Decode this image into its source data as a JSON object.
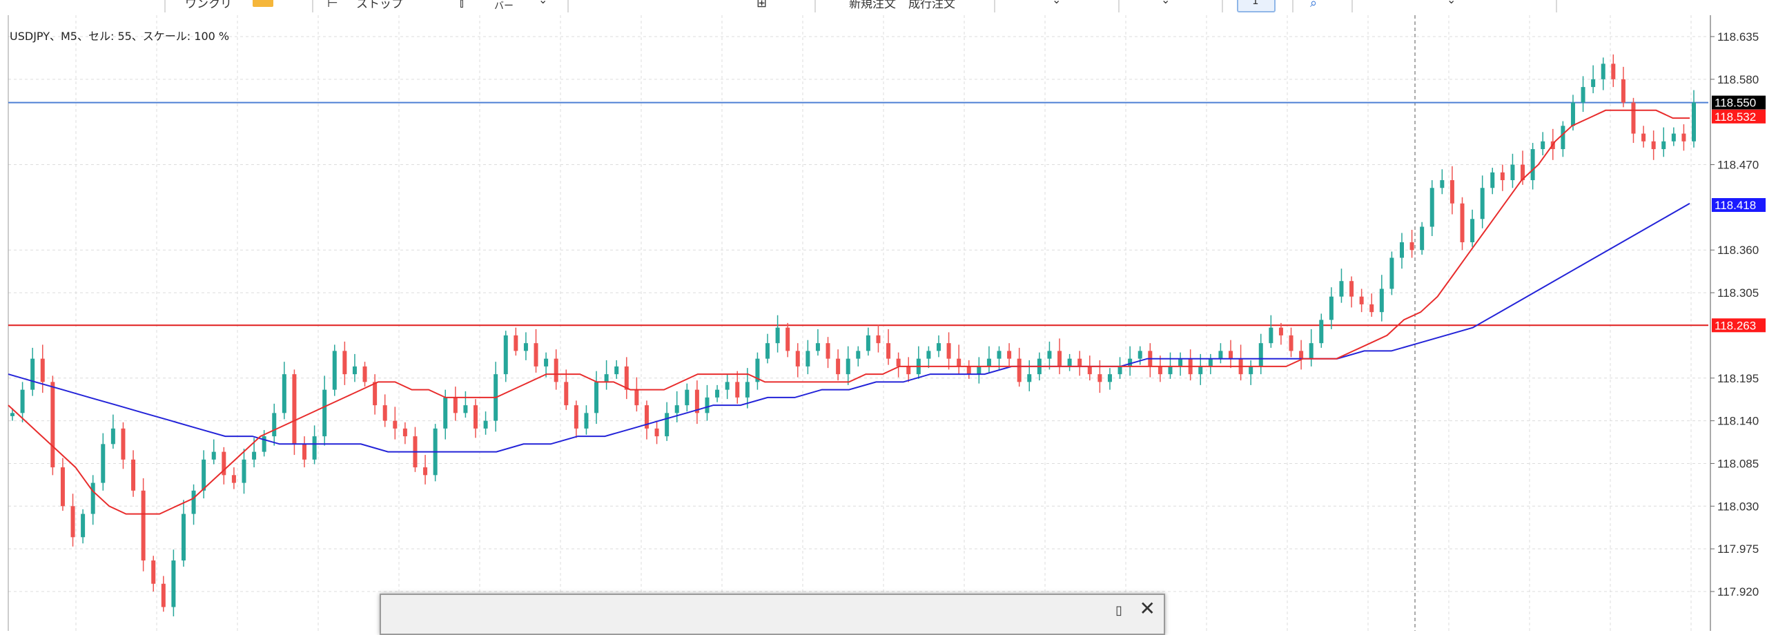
{
  "toolbar": {
    "items": [
      {
        "label": "ワンクリ",
        "icon": "one-click-trading-icon"
      },
      {
        "label": "ストップ",
        "icon": "stop-icon"
      },
      {
        "label": "バー",
        "icon": "bar-chart-icon"
      },
      {
        "label": "新規注文",
        "icon": "new-order-icon"
      },
      {
        "label": "成行注文",
        "icon": "market-order-icon"
      },
      {
        "label": "1",
        "icon": "zoom-icon"
      }
    ]
  },
  "chart": {
    "header_text": "USDJPY、M5、セル: 55、スケール: 100 %",
    "colors": {
      "bull": "#26a69a",
      "bear": "#ef5350",
      "ma_fast": "#e82c2c",
      "ma_slow": "#2323d8",
      "hline_blue": "#4d7fd4",
      "hline_red": "#e01b1b"
    }
  },
  "chart_data": {
    "type": "candlestick",
    "symbol": "USDJPY",
    "timeframe": "M5",
    "y_ticks": [
      "118.635",
      "118.580",
      "118.470",
      "118.360",
      "118.305",
      "118.195",
      "118.140",
      "118.085",
      "118.030",
      "117.975",
      "117.920"
    ],
    "price_labels": [
      {
        "value": "118.550",
        "bg": "#000000",
        "fg": "#ffffff"
      },
      {
        "value": "118.532",
        "bg": "#ff1a1a",
        "fg": "#ffffff"
      },
      {
        "value": "118.418",
        "bg": "#1a1aff",
        "fg": "#ffffff"
      },
      {
        "value": "118.263",
        "bg": "#ff1a1a",
        "fg": "#ffffff"
      }
    ],
    "horizontal_lines": [
      {
        "value": 118.55,
        "color": "#4d7fd4"
      },
      {
        "value": 118.263,
        "color": "#e01b1b"
      }
    ],
    "close_path": [
      118.15,
      118.18,
      118.22,
      118.19,
      118.08,
      118.03,
      117.99,
      118.02,
      118.06,
      118.11,
      118.13,
      118.09,
      118.05,
      117.96,
      117.93,
      117.9,
      117.96,
      118.02,
      118.05,
      118.09,
      118.1,
      118.07,
      118.06,
      118.09,
      118.1,
      118.12,
      118.15,
      118.2,
      118.11,
      118.09,
      118.12,
      118.18,
      118.23,
      118.2,
      118.21,
      118.19,
      118.16,
      118.14,
      118.13,
      118.12,
      118.08,
      118.07,
      118.13,
      118.17,
      118.15,
      118.16,
      118.13,
      118.14,
      118.2,
      118.25,
      118.23,
      118.24,
      118.21,
      118.22,
      118.19,
      118.16,
      118.13,
      118.15,
      118.19,
      118.2,
      118.21,
      118.18,
      118.16,
      118.13,
      118.12,
      118.15,
      118.16,
      118.18,
      118.15,
      118.17,
      118.18,
      118.19,
      118.17,
      118.19,
      118.22,
      118.24,
      118.26,
      118.23,
      118.21,
      118.23,
      118.24,
      118.22,
      118.2,
      118.22,
      118.23,
      118.25,
      118.24,
      118.22,
      118.21,
      118.2,
      118.22,
      118.23,
      118.24,
      118.22,
      118.21,
      118.2,
      118.21,
      118.22,
      118.23,
      118.22,
      118.19,
      118.2,
      118.22,
      118.23,
      118.21,
      118.22,
      118.21,
      118.2,
      118.19,
      118.2,
      118.21,
      118.22,
      118.23,
      118.21,
      118.2,
      118.21,
      118.22,
      118.2,
      118.21,
      118.22,
      118.23,
      118.22,
      118.2,
      118.21,
      118.24,
      118.26,
      118.25,
      118.23,
      118.22,
      118.24,
      118.27,
      118.3,
      118.32,
      118.3,
      118.29,
      118.28,
      118.31,
      118.35,
      118.37,
      118.36,
      118.39,
      118.44,
      118.45,
      118.42,
      118.37,
      118.4,
      118.44,
      118.46,
      118.45,
      118.47,
      118.45,
      118.49,
      118.5,
      118.49,
      118.52,
      118.55,
      118.57,
      118.58,
      118.6,
      118.58,
      118.55,
      118.51,
      118.5,
      118.49,
      118.5,
      118.51,
      118.5,
      118.55
    ],
    "ma_fast_path": [
      118.16,
      118.14,
      118.12,
      118.1,
      118.08,
      118.05,
      118.03,
      118.02,
      118.02,
      118.02,
      118.03,
      118.04,
      118.06,
      118.08,
      118.1,
      118.12,
      118.13,
      118.14,
      118.15,
      118.16,
      118.17,
      118.18,
      118.19,
      118.19,
      118.18,
      118.18,
      118.17,
      118.17,
      118.17,
      118.17,
      118.18,
      118.19,
      118.2,
      118.2,
      118.2,
      118.19,
      118.19,
      118.18,
      118.18,
      118.18,
      118.19,
      118.2,
      118.2,
      118.2,
      118.2,
      118.19,
      118.19,
      118.19,
      118.19,
      118.19,
      118.19,
      118.2,
      118.2,
      118.21,
      118.21,
      118.21,
      118.21,
      118.21,
      118.21,
      118.21,
      118.21,
      118.21,
      118.21,
      118.21,
      118.21,
      118.21,
      118.21,
      118.21,
      118.21,
      118.21,
      118.21,
      118.21,
      118.21,
      118.21,
      118.21,
      118.21,
      118.21,
      118.22,
      118.22,
      118.22,
      118.23,
      118.24,
      118.25,
      118.27,
      118.28,
      118.3,
      118.33,
      118.36,
      118.39,
      118.42,
      118.45,
      118.47,
      118.5,
      118.52,
      118.53,
      118.54,
      118.54,
      118.54,
      118.54,
      118.53,
      118.53
    ],
    "ma_slow_path": [
      118.2,
      118.19,
      118.18,
      118.17,
      118.16,
      118.15,
      118.14,
      118.13,
      118.12,
      118.12,
      118.11,
      118.11,
      118.11,
      118.11,
      118.1,
      118.1,
      118.1,
      118.1,
      118.1,
      118.11,
      118.11,
      118.12,
      118.12,
      118.13,
      118.14,
      118.15,
      118.16,
      118.16,
      118.17,
      118.17,
      118.18,
      118.18,
      118.19,
      118.19,
      118.2,
      118.2,
      118.2,
      118.21,
      118.21,
      118.21,
      118.21,
      118.21,
      118.22,
      118.22,
      118.22,
      118.22,
      118.22,
      118.22,
      118.22,
      118.22,
      118.23,
      118.23,
      118.24,
      118.25,
      118.26,
      118.28,
      118.3,
      118.32,
      118.34,
      118.36,
      118.38,
      118.4,
      118.42
    ]
  },
  "dialog": {
    "dock_icon": "dock-icon",
    "close_icon": "close-icon"
  }
}
